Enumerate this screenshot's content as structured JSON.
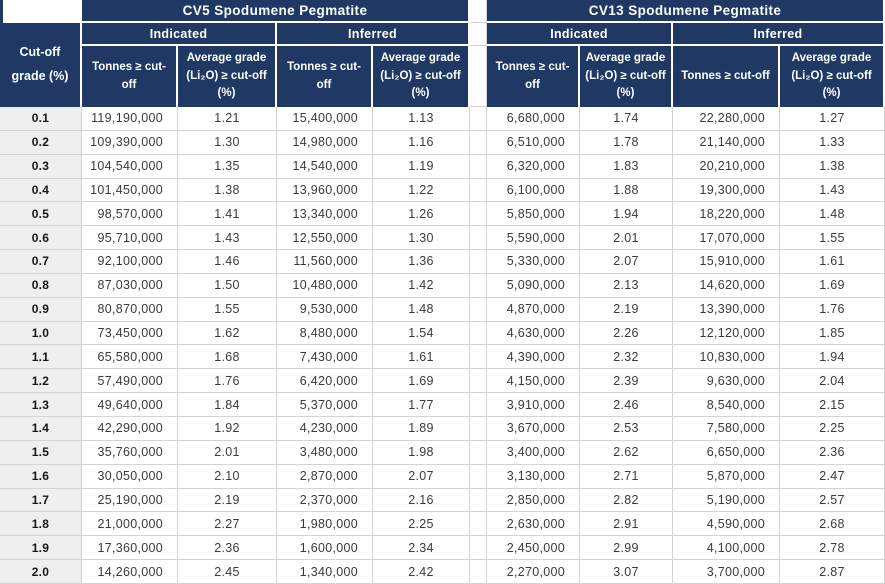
{
  "header": {
    "cutoff_label": "Cut-off grade (%)",
    "tonnes_label": "Tonnes ≥ cut-off",
    "grade_label": "Average grade (Li₂O) ≥ cut-off (%)"
  },
  "tables": {
    "cv5": {
      "title": "CV5 Spodumene Pegmatite",
      "indicated_label": "Indicated",
      "inferred_label": "Inferred"
    },
    "cv13": {
      "title": "CV13 Spodumene Pegmatite",
      "indicated_label": "Indicated",
      "inferred_label": "Inferred"
    }
  },
  "colors": {
    "header_navy": "#1F3864",
    "grid_line": "#D4D4D4",
    "cutoff_column_bg": "#EFEFEF",
    "header_text": "#FFFFFF"
  },
  "rows": [
    {
      "cutoff": "0.1",
      "cv5": {
        "ind_tonnes": "119,190,000",
        "ind_grade": "1.21",
        "inf_tonnes": "15,400,000",
        "inf_grade": "1.13"
      },
      "cv13": {
        "ind_tonnes": "6,680,000",
        "ind_grade": "1.74",
        "inf_tonnes": "22,280,000",
        "inf_grade": "1.27"
      }
    },
    {
      "cutoff": "0.2",
      "cv5": {
        "ind_tonnes": "109,390,000",
        "ind_grade": "1.30",
        "inf_tonnes": "14,980,000",
        "inf_grade": "1.16"
      },
      "cv13": {
        "ind_tonnes": "6,510,000",
        "ind_grade": "1.78",
        "inf_tonnes": "21,140,000",
        "inf_grade": "1.33"
      }
    },
    {
      "cutoff": "0.3",
      "cv5": {
        "ind_tonnes": "104,540,000",
        "ind_grade": "1.35",
        "inf_tonnes": "14,540,000",
        "inf_grade": "1.19"
      },
      "cv13": {
        "ind_tonnes": "6,320,000",
        "ind_grade": "1.83",
        "inf_tonnes": "20,210,000",
        "inf_grade": "1.38"
      }
    },
    {
      "cutoff": "0.4",
      "cv5": {
        "ind_tonnes": "101,450,000",
        "ind_grade": "1.38",
        "inf_tonnes": "13,960,000",
        "inf_grade": "1.22"
      },
      "cv13": {
        "ind_tonnes": "6,100,000",
        "ind_grade": "1.88",
        "inf_tonnes": "19,300,000",
        "inf_grade": "1.43"
      }
    },
    {
      "cutoff": "0.5",
      "cv5": {
        "ind_tonnes": "98,570,000",
        "ind_grade": "1.41",
        "inf_tonnes": "13,340,000",
        "inf_grade": "1.26"
      },
      "cv13": {
        "ind_tonnes": "5,850,000",
        "ind_grade": "1.94",
        "inf_tonnes": "18,220,000",
        "inf_grade": "1.48"
      }
    },
    {
      "cutoff": "0.6",
      "cv5": {
        "ind_tonnes": "95,710,000",
        "ind_grade": "1.43",
        "inf_tonnes": "12,550,000",
        "inf_grade": "1.30"
      },
      "cv13": {
        "ind_tonnes": "5,590,000",
        "ind_grade": "2.01",
        "inf_tonnes": "17,070,000",
        "inf_grade": "1.55"
      }
    },
    {
      "cutoff": "0.7",
      "cv5": {
        "ind_tonnes": "92,100,000",
        "ind_grade": "1.46",
        "inf_tonnes": "11,560,000",
        "inf_grade": "1.36"
      },
      "cv13": {
        "ind_tonnes": "5,330,000",
        "ind_grade": "2.07",
        "inf_tonnes": "15,910,000",
        "inf_grade": "1.61"
      }
    },
    {
      "cutoff": "0.8",
      "cv5": {
        "ind_tonnes": "87,030,000",
        "ind_grade": "1.50",
        "inf_tonnes": "10,480,000",
        "inf_grade": "1.42"
      },
      "cv13": {
        "ind_tonnes": "5,090,000",
        "ind_grade": "2.13",
        "inf_tonnes": "14,620,000",
        "inf_grade": "1.69"
      }
    },
    {
      "cutoff": "0.9",
      "cv5": {
        "ind_tonnes": "80,870,000",
        "ind_grade": "1.55",
        "inf_tonnes": "9,530,000",
        "inf_grade": "1.48"
      },
      "cv13": {
        "ind_tonnes": "4,870,000",
        "ind_grade": "2.19",
        "inf_tonnes": "13,390,000",
        "inf_grade": "1.76"
      }
    },
    {
      "cutoff": "1.0",
      "cv5": {
        "ind_tonnes": "73,450,000",
        "ind_grade": "1.62",
        "inf_tonnes": "8,480,000",
        "inf_grade": "1.54"
      },
      "cv13": {
        "ind_tonnes": "4,630,000",
        "ind_grade": "2.26",
        "inf_tonnes": "12,120,000",
        "inf_grade": "1.85"
      }
    },
    {
      "cutoff": "1.1",
      "cv5": {
        "ind_tonnes": "65,580,000",
        "ind_grade": "1.68",
        "inf_tonnes": "7,430,000",
        "inf_grade": "1.61"
      },
      "cv13": {
        "ind_tonnes": "4,390,000",
        "ind_grade": "2.32",
        "inf_tonnes": "10,830,000",
        "inf_grade": "1.94"
      }
    },
    {
      "cutoff": "1.2",
      "cv5": {
        "ind_tonnes": "57,490,000",
        "ind_grade": "1.76",
        "inf_tonnes": "6,420,000",
        "inf_grade": "1.69"
      },
      "cv13": {
        "ind_tonnes": "4,150,000",
        "ind_grade": "2.39",
        "inf_tonnes": "9,630,000",
        "inf_grade": "2.04"
      }
    },
    {
      "cutoff": "1.3",
      "cv5": {
        "ind_tonnes": "49,640,000",
        "ind_grade": "1.84",
        "inf_tonnes": "5,370,000",
        "inf_grade": "1.77"
      },
      "cv13": {
        "ind_tonnes": "3,910,000",
        "ind_grade": "2.46",
        "inf_tonnes": "8,540,000",
        "inf_grade": "2.15"
      }
    },
    {
      "cutoff": "1.4",
      "cv5": {
        "ind_tonnes": "42,290,000",
        "ind_grade": "1.92",
        "inf_tonnes": "4,230,000",
        "inf_grade": "1.89"
      },
      "cv13": {
        "ind_tonnes": "3,670,000",
        "ind_grade": "2.53",
        "inf_tonnes": "7,580,000",
        "inf_grade": "2.25"
      }
    },
    {
      "cutoff": "1.5",
      "cv5": {
        "ind_tonnes": "35,760,000",
        "ind_grade": "2.01",
        "inf_tonnes": "3,480,000",
        "inf_grade": "1.98"
      },
      "cv13": {
        "ind_tonnes": "3,400,000",
        "ind_grade": "2.62",
        "inf_tonnes": "6,650,000",
        "inf_grade": "2.36"
      }
    },
    {
      "cutoff": "1.6",
      "cv5": {
        "ind_tonnes": "30,050,000",
        "ind_grade": "2.10",
        "inf_tonnes": "2,870,000",
        "inf_grade": "2.07"
      },
      "cv13": {
        "ind_tonnes": "3,130,000",
        "ind_grade": "2.71",
        "inf_tonnes": "5,870,000",
        "inf_grade": "2.47"
      }
    },
    {
      "cutoff": "1.7",
      "cv5": {
        "ind_tonnes": "25,190,000",
        "ind_grade": "2.19",
        "inf_tonnes": "2,370,000",
        "inf_grade": "2.16"
      },
      "cv13": {
        "ind_tonnes": "2,850,000",
        "ind_grade": "2.82",
        "inf_tonnes": "5,190,000",
        "inf_grade": "2.57"
      }
    },
    {
      "cutoff": "1.8",
      "cv5": {
        "ind_tonnes": "21,000,000",
        "ind_grade": "2.27",
        "inf_tonnes": "1,980,000",
        "inf_grade": "2.25"
      },
      "cv13": {
        "ind_tonnes": "2,630,000",
        "ind_grade": "2.91",
        "inf_tonnes": "4,590,000",
        "inf_grade": "2.68"
      }
    },
    {
      "cutoff": "1.9",
      "cv5": {
        "ind_tonnes": "17,360,000",
        "ind_grade": "2.36",
        "inf_tonnes": "1,600,000",
        "inf_grade": "2.34"
      },
      "cv13": {
        "ind_tonnes": "2,450,000",
        "ind_grade": "2.99",
        "inf_tonnes": "4,100,000",
        "inf_grade": "2.78"
      }
    },
    {
      "cutoff": "2.0",
      "cv5": {
        "ind_tonnes": "14,260,000",
        "ind_grade": "2.45",
        "inf_tonnes": "1,340,000",
        "inf_grade": "2.42"
      },
      "cv13": {
        "ind_tonnes": "2,270,000",
        "ind_grade": "3.07",
        "inf_tonnes": "3,700,000",
        "inf_grade": "2.87"
      }
    }
  ]
}
